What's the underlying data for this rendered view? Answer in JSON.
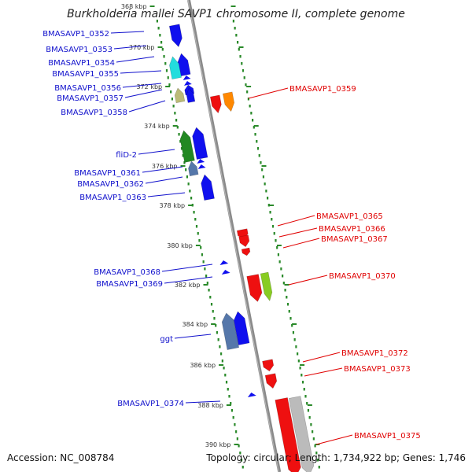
{
  "title": "Burkholderia mallei SAVP1 chromosome II, complete genome",
  "footer": {
    "accession": "Accession: NC_008784",
    "topology": "Topology: circular; Length: 1,734,922 bp; Genes: 1,746"
  },
  "ticks": [
    "368 kbp",
    "370 kbp",
    "372 kbp",
    "374 kbp",
    "376 kbp",
    "378 kbp",
    "380 kbp",
    "382 kbp",
    "384 kbp",
    "386 kbp",
    "388 kbp",
    "390 kbp"
  ],
  "labels_left": [
    {
      "text": "BMASAVP1_0352",
      "name": "label-bmasavp1-0352"
    },
    {
      "text": "BMASAVP1_0353",
      "name": "label-bmasavp1-0353"
    },
    {
      "text": "BMASAVP1_0354",
      "name": "label-bmasavp1-0354"
    },
    {
      "text": "BMASAVP1_0355",
      "name": "label-bmasavp1-0355"
    },
    {
      "text": "BMASAVP1_0356",
      "name": "label-bmasavp1-0356"
    },
    {
      "text": "BMASAVP1_0357",
      "name": "label-bmasavp1-0357"
    },
    {
      "text": "BMASAVP1_0358",
      "name": "label-bmasavp1-0358"
    },
    {
      "text": "fliD-2",
      "name": "label-flid-2"
    },
    {
      "text": "BMASAVP1_0361",
      "name": "label-bmasavp1-0361"
    },
    {
      "text": "BMASAVP1_0362",
      "name": "label-bmasavp1-0362"
    },
    {
      "text": "BMASAVP1_0363",
      "name": "label-bmasavp1-0363"
    },
    {
      "text": "BMASAVP1_0368",
      "name": "label-bmasavp1-0368"
    },
    {
      "text": "BMASAVP1_0369",
      "name": "label-bmasavp1-0369"
    },
    {
      "text": "ggt",
      "name": "label-ggt"
    },
    {
      "text": "BMASAVP1_0374",
      "name": "label-bmasavp1-0374"
    }
  ],
  "labels_right": [
    {
      "text": "BMASAVP1_0359",
      "name": "label-bmasavp1-0359"
    },
    {
      "text": "BMASAVP1_0365",
      "name": "label-bmasavp1-0365"
    },
    {
      "text": "BMASAVP1_0366",
      "name": "label-bmasavp1-0366"
    },
    {
      "text": "BMASAVP1_0367",
      "name": "label-bmasavp1-0367"
    },
    {
      "text": "BMASAVP1_0370",
      "name": "label-bmasavp1-0370"
    },
    {
      "text": "BMASAVP1_0372",
      "name": "label-bmasavp1-0372"
    },
    {
      "text": "BMASAVP1_0373",
      "name": "label-bmasavp1-0373"
    },
    {
      "text": "BMASAVP1_0375",
      "name": "label-bmasavp1-0375"
    }
  ],
  "colors": {
    "backbone": "#8a8a8a",
    "forward_strand": "#1010ee",
    "reverse_strand": "#ee1010",
    "ring": "#2a8a2a",
    "cyan": "#22dddd",
    "olive": "#bbbb77",
    "green": "#228822",
    "steel": "#5577aa",
    "orange": "#ff8800",
    "lime": "#88cc22",
    "gray": "#bbbbbb"
  }
}
